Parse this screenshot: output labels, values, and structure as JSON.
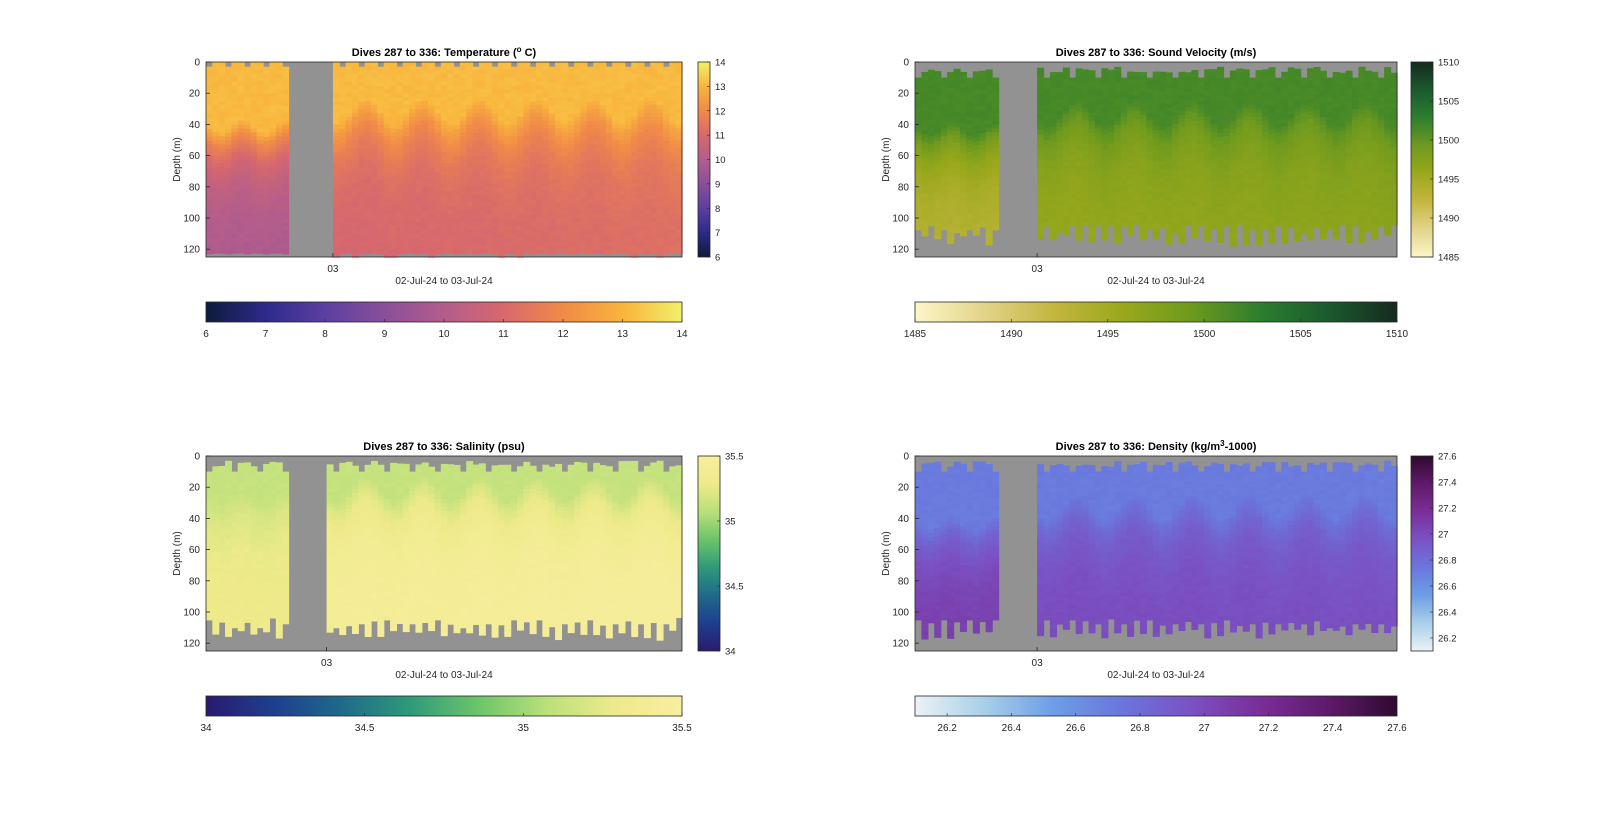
{
  "chart_data": [
    {
      "type": "heatmap",
      "title_parts": [
        "Dives 287 to 336: Temperature (",
        "o",
        " C)"
      ],
      "title_sup_index": 1,
      "ylabel": "Depth (m)",
      "xlabel": "02-Jul-24 to 03-Jul-24",
      "x_tick_labels": [
        "03"
      ],
      "y_ticks": [
        0,
        20,
        40,
        60,
        80,
        100,
        120
      ],
      "ylim": [
        0,
        125
      ],
      "clim": [
        6,
        14
      ],
      "cbar_ticks": [
        "6",
        "7",
        "8",
        "9",
        "10",
        "11",
        "12",
        "13",
        "14"
      ],
      "hcbar_ticks": [
        "6",
        "7",
        "8",
        "9",
        "10",
        "11",
        "12",
        "13",
        "14"
      ],
      "colormap": [
        "#0d1b3a",
        "#2e2a8a",
        "#5b3fa0",
        "#8a4f9a",
        "#b35d8c",
        "#d7686d",
        "#f08a48",
        "#f9b43d",
        "#f2f06a"
      ],
      "no_data_color": "#929292",
      "gap_dives": [
        13,
        20
      ],
      "dives": 75,
      "value_profile": {
        "surface": 13.1,
        "deep_early": 9.8,
        "deep_late": 10.9,
        "thermocline_early": 40,
        "thermocline_late": 30,
        "top_gap": true,
        "bottom_gap": "small"
      }
    },
    {
      "type": "heatmap",
      "title_parts": [
        "Dives 287 to 336: Sound Velocity (m/s)"
      ],
      "title_sup_index": -1,
      "ylabel": "Depth (m)",
      "xlabel": "02-Jul-24 to 03-Jul-24",
      "x_tick_labels": [
        "03"
      ],
      "y_ticks": [
        0,
        20,
        40,
        60,
        80,
        100,
        120
      ],
      "ylim": [
        0,
        125
      ],
      "clim": [
        1485,
        1510
      ],
      "cbar_ticks": [
        "1485",
        "1490",
        "1495",
        "1500",
        "1505",
        "1510"
      ],
      "hcbar_ticks": [
        "1485",
        "1490",
        "1495",
        "1500",
        "1505",
        "1510"
      ],
      "colormap": [
        "#fdf6c8",
        "#e2d48a",
        "#c4b640",
        "#9aa81c",
        "#6e9a1e",
        "#2e7e2e",
        "#1a5a2e",
        "#162a20"
      ],
      "no_data_color": "#929292",
      "gap_dives": [
        13,
        19
      ],
      "dives": 75,
      "value_profile": {
        "surface": 1501.5,
        "deep_early": 1493.2,
        "deep_late": 1496.0,
        "thermocline_early": 42,
        "thermocline_late": 32,
        "top_gap": "large",
        "bottom_gap": "large"
      }
    },
    {
      "type": "heatmap",
      "title_parts": [
        "Dives 287 to 336: Salinity (psu)"
      ],
      "title_sup_index": -1,
      "ylabel": "Depth (m)",
      "xlabel": "02-Jul-24 to 03-Jul-24",
      "x_tick_labels": [
        "03"
      ],
      "y_ticks": [
        0,
        20,
        40,
        60,
        80,
        100,
        120
      ],
      "ylim": [
        0,
        125
      ],
      "clim": [
        34,
        35.5
      ],
      "cbar_ticks": [
        "34",
        "34.5",
        "35",
        "35.5"
      ],
      "hcbar_ticks": [
        "34",
        "34.5",
        "35",
        "35.5"
      ],
      "colormap": [
        "#2a1a6e",
        "#1e3f8e",
        "#1f6a8a",
        "#2e9a7a",
        "#6cc46a",
        "#b9e07a",
        "#eeea8a",
        "#f8eea0"
      ],
      "no_data_color": "#929292",
      "gap_dives": [
        13,
        19
      ],
      "dives": 75,
      "value_profile": {
        "surface": 35.12,
        "deep_early": 35.3,
        "deep_late": 35.42,
        "thermocline_early": 25,
        "thermocline_late": 20,
        "top_gap": "large",
        "bottom_gap": "large"
      }
    },
    {
      "type": "heatmap",
      "title_parts": [
        "Dives 287 to 336: Density (kg/m",
        "3",
        "-1000)"
      ],
      "title_sup_index": 1,
      "ylabel": "Depth (m)",
      "xlabel": "02-Jul-24 to 03-Jul-24",
      "x_tick_labels": [
        "03"
      ],
      "y_ticks": [
        0,
        20,
        40,
        60,
        80,
        100,
        120
      ],
      "ylim": [
        0,
        125
      ],
      "clim": [
        26.1,
        27.6
      ],
      "cbar_ticks": [
        "26.2",
        "26.4",
        "26.6",
        "26.8",
        "27",
        "27.2",
        "27.4",
        "27.6"
      ],
      "hcbar_ticks": [
        "26.2",
        "26.4",
        "26.6",
        "26.8",
        "27",
        "27.2",
        "27.4",
        "27.6"
      ],
      "colormap": [
        "#eaf3f6",
        "#a9cfe8",
        "#6d9ee6",
        "#6a76dc",
        "#7a52c4",
        "#7a2e98",
        "#5e1a6a",
        "#2e0a30"
      ],
      "no_data_color": "#929292",
      "gap_dives": [
        13,
        19
      ],
      "dives": 75,
      "value_profile": {
        "surface": 26.72,
        "deep_early": 27.08,
        "deep_late": 27.0,
        "thermocline_early": 42,
        "thermocline_late": 32,
        "top_gap": "large",
        "bottom_gap": "large"
      }
    }
  ]
}
